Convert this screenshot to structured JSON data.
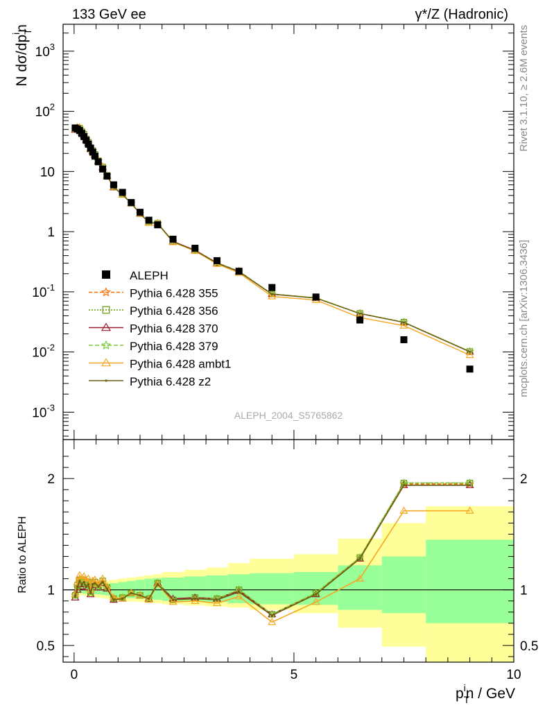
{
  "header": {
    "left": "133 GeV ee",
    "right": "γ*/Z (Hadronic)"
  },
  "side_labels": {
    "rivet": "Rivet 3.1.10, ≥ 2.6M events",
    "mcplots": "mcplots.cern.ch [arXiv:1306.3436]"
  },
  "watermark": "ALEPH_2004_S5765862",
  "axes": {
    "main_ylabel": "N dσ/dp_T^i n",
    "ratio_ylabel": "Ratio to ALEPH",
    "xlabel": "p_T^i n / GeV",
    "main_yticks": [
      "10^-3",
      "10^-2",
      "10^-1",
      "1",
      "10",
      "10^2",
      "10^3"
    ],
    "ratio_yticks": [
      "0.5",
      "1",
      "2"
    ],
    "xticks": [
      "0",
      "5",
      "10"
    ]
  },
  "chart_data": {
    "type": "scatter",
    "scale": "log-y",
    "xlim": [
      -0.25,
      10.0
    ],
    "ylim": [
      0.00035,
      2800
    ],
    "ratio_ylim": [
      0.35,
      2.35
    ],
    "legend_position": "middle-left",
    "data": {
      "name": "ALEPH",
      "x": [
        0.025,
        0.075,
        0.125,
        0.175,
        0.225,
        0.275,
        0.325,
        0.375,
        0.425,
        0.475,
        0.55,
        0.65,
        0.75,
        0.9,
        1.1,
        1.3,
        1.5,
        1.7,
        1.9,
        2.25,
        2.75,
        3.25,
        3.75,
        4.5,
        5.5,
        6.5,
        7.5,
        9.0
      ],
      "y": [
        53,
        51,
        48,
        43,
        38,
        33,
        28.5,
        24.5,
        21,
        18,
        14.5,
        11,
        8.4,
        6,
        4.5,
        3.05,
        2.1,
        1.55,
        1.3,
        0.75,
        0.53,
        0.33,
        0.22,
        0.118,
        0.082,
        0.034,
        0.016,
        0.0052
      ]
    },
    "bands": {
      "x_edges": [
        0,
        0.1,
        0.2,
        0.3,
        0.4,
        0.5,
        0.6,
        0.7,
        0.8,
        1.0,
        1.2,
        1.4,
        1.6,
        1.8,
        2.0,
        2.5,
        3.0,
        3.5,
        4.0,
        5.0,
        6.0,
        7.0,
        8.0,
        10.0
      ],
      "stat_lo": [
        0.97,
        0.97,
        0.965,
        0.965,
        0.96,
        0.96,
        0.955,
        0.95,
        0.94,
        0.935,
        0.925,
        0.92,
        0.915,
        0.91,
        0.9,
        0.895,
        0.89,
        0.88,
        0.87,
        0.865,
        0.82,
        0.79,
        0.7
      ],
      "stat_hi": [
        1.03,
        1.03,
        1.035,
        1.035,
        1.04,
        1.04,
        1.045,
        1.05,
        1.06,
        1.07,
        1.08,
        1.09,
        1.1,
        1.105,
        1.11,
        1.12,
        1.13,
        1.14,
        1.15,
        1.16,
        1.22,
        1.3,
        1.45
      ],
      "tot_lo": [
        0.95,
        0.95,
        0.945,
        0.94,
        0.935,
        0.93,
        0.925,
        0.92,
        0.91,
        0.9,
        0.895,
        0.89,
        0.885,
        0.88,
        0.87,
        0.86,
        0.85,
        0.84,
        0.82,
        0.79,
        0.66,
        0.49,
        0.3
      ],
      "tot_hi": [
        1.05,
        1.05,
        1.055,
        1.06,
        1.065,
        1.07,
        1.075,
        1.08,
        1.09,
        1.1,
        1.11,
        1.12,
        1.13,
        1.14,
        1.16,
        1.18,
        1.2,
        1.24,
        1.28,
        1.32,
        1.46,
        1.6,
        1.75
      ]
    },
    "series": [
      {
        "name": "Pythia 6.428 355",
        "color": "#ff6a00",
        "dash": "5,3",
        "marker": "star",
        "ratio": [
          0.95,
          1.02,
          1.08,
          1.06,
          1.08,
          1.04,
          1.06,
          0.97,
          1.05,
          1.06,
          1.03,
          1.07,
          1.02,
          0.92,
          0.93,
          0.97,
          0.95,
          0.92,
          1.06,
          0.91,
          0.92,
          0.92,
          1.0,
          0.78,
          0.97,
          1.29,
          1.95,
          1.95
        ]
      },
      {
        "name": "Pythia 6.428 356",
        "color": "#669900",
        "dash": "2,2",
        "marker": "open-square",
        "ratio": [
          0.95,
          1.04,
          1.09,
          1.07,
          1.09,
          1.05,
          1.07,
          0.98,
          1.06,
          1.07,
          1.04,
          1.08,
          1.02,
          0.92,
          0.93,
          0.97,
          0.95,
          0.92,
          1.06,
          0.91,
          0.93,
          0.92,
          1.0,
          0.78,
          0.97,
          1.29,
          1.96,
          1.96
        ]
      },
      {
        "name": "Pythia 6.428 370",
        "color": "#9b1b30",
        "dash": "",
        "marker": "open-triangle",
        "ratio": [
          0.93,
          1.0,
          1.06,
          1.03,
          1.05,
          1.02,
          1.04,
          0.96,
          1.04,
          1.05,
          1.02,
          1.06,
          1.01,
          0.91,
          0.92,
          0.97,
          0.95,
          0.92,
          1.06,
          0.92,
          0.93,
          0.92,
          0.99,
          0.78,
          0.96,
          1.28,
          1.94,
          1.94
        ]
      },
      {
        "name": "Pythia 6.428 379",
        "color": "#7bc93a",
        "dash": "6,3",
        "marker": "star",
        "ratio": [
          0.95,
          1.03,
          1.09,
          1.06,
          1.08,
          1.04,
          1.06,
          0.97,
          1.05,
          1.06,
          1.03,
          1.07,
          1.02,
          0.92,
          0.93,
          0.97,
          0.95,
          0.92,
          1.06,
          0.91,
          0.92,
          0.92,
          1.0,
          0.78,
          0.97,
          1.29,
          1.96,
          1.96
        ]
      },
      {
        "name": "Pythia 6.428 ambt1",
        "color": "#f5a623",
        "dash": "",
        "marker": "open-triangle",
        "ratio": [
          0.96,
          1.07,
          1.13,
          1.1,
          1.12,
          1.08,
          1.1,
          1.0,
          1.08,
          1.09,
          1.05,
          1.1,
          1.03,
          0.93,
          0.92,
          0.97,
          0.95,
          0.91,
          1.05,
          0.89,
          0.9,
          0.88,
          0.94,
          0.71,
          0.89,
          1.1,
          1.71,
          1.71
        ]
      },
      {
        "name": "Pythia 6.428 z2",
        "color": "#6b5e12",
        "dash": "",
        "marker": "dot",
        "ratio": [
          0.94,
          1.03,
          1.08,
          1.05,
          1.07,
          1.03,
          1.05,
          0.97,
          1.05,
          1.06,
          1.03,
          1.07,
          1.01,
          0.91,
          0.92,
          0.97,
          0.95,
          0.92,
          1.05,
          0.91,
          0.92,
          0.91,
          0.98,
          0.77,
          0.96,
          1.28,
          1.94,
          1.94
        ]
      }
    ]
  }
}
